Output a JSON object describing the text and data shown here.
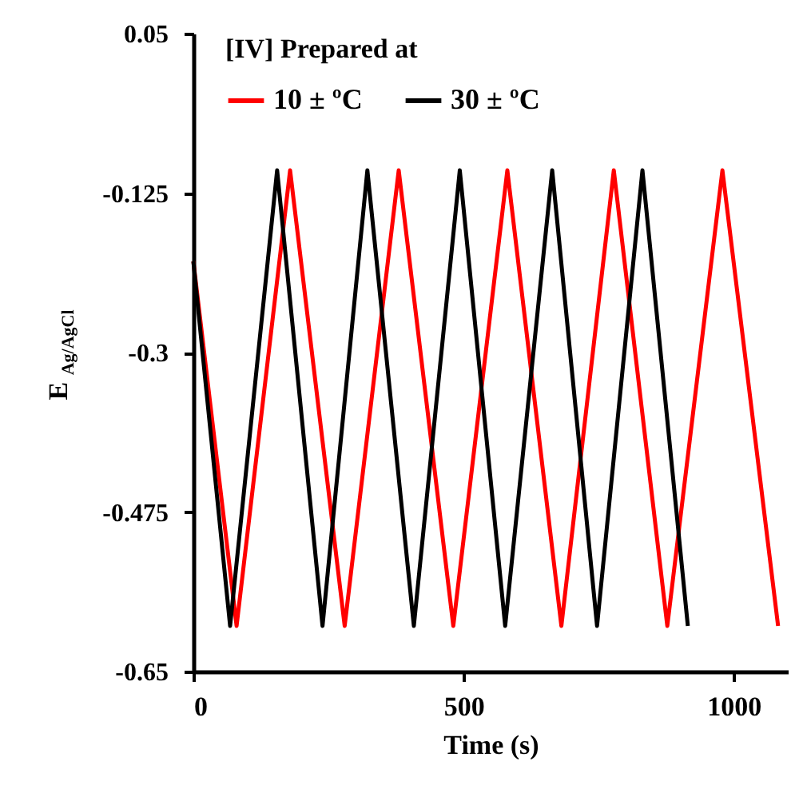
{
  "chart_data": {
    "type": "line",
    "xlabel": "Time (s)",
    "ylabel": "E $_{Ag/AgCl}$",
    "legend_title": "[IV] Prepared at",
    "legend": "top",
    "grid": false,
    "marker": "none",
    "line_style": "solid",
    "xlim": [
      0,
      1100
    ],
    "xticks": [
      0,
      500,
      1000
    ],
    "ylim": [
      -0.65,
      0.05
    ],
    "yticks": [
      0.05,
      -0.125,
      -0.3,
      -0.475,
      -0.65
    ],
    "series": [
      {
        "name": "10 ± ºC",
        "color": "#ff0000",
        "x": [
          0,
          80,
          179,
          280,
          380,
          481,
          581,
          681,
          778,
          877,
          979,
          1082
        ],
        "values": [
          -0.2,
          -0.6,
          -0.1,
          -0.6,
          -0.1,
          -0.6,
          -0.1,
          -0.6,
          -0.1,
          -0.6,
          -0.1,
          -0.6
        ]
      },
      {
        "name": "30 ± ºC",
        "color": "#000000",
        "x": [
          0,
          68,
          155,
          239,
          322,
          408,
          493,
          577,
          664,
          747,
          831,
          915
        ],
        "values": [
          -0.2,
          -0.6,
          -0.1,
          -0.6,
          -0.1,
          -0.6,
          -0.1,
          -0.6,
          -0.1,
          -0.6,
          -0.1,
          -0.6
        ]
      }
    ]
  }
}
